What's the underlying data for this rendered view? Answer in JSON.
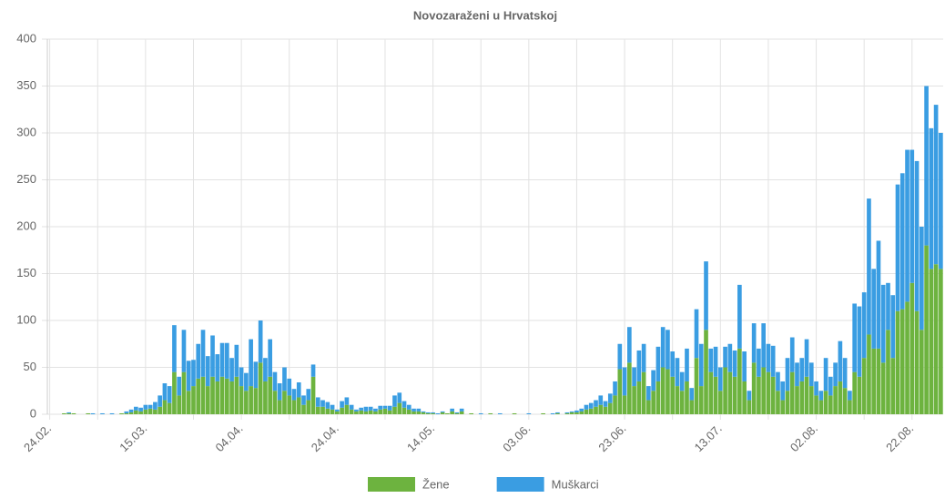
{
  "chart_data": {
    "type": "stacked_bar",
    "title": "Novozaraženi u Hrvatskoj",
    "categories": [
      "24.02.",
      null,
      null,
      null,
      null,
      null,
      null,
      null,
      null,
      null,
      null,
      null,
      null,
      null,
      null,
      null,
      null,
      null,
      null,
      null,
      "15.03.",
      null,
      null,
      null,
      null,
      null,
      null,
      null,
      null,
      null,
      null,
      null,
      null,
      null,
      null,
      null,
      null,
      null,
      null,
      null,
      "04.04.",
      null,
      null,
      null,
      null,
      null,
      null,
      null,
      null,
      null,
      null,
      null,
      null,
      null,
      null,
      null,
      null,
      null,
      null,
      null,
      "24.04.",
      null,
      null,
      null,
      null,
      null,
      null,
      null,
      null,
      null,
      null,
      null,
      null,
      null,
      null,
      null,
      null,
      null,
      null,
      null,
      "14.05.",
      null,
      null,
      null,
      null,
      null,
      null,
      null,
      null,
      null,
      null,
      null,
      null,
      null,
      null,
      null,
      null,
      null,
      null,
      null,
      "03.06.",
      null,
      null,
      null,
      null,
      null,
      null,
      null,
      null,
      null,
      null,
      null,
      null,
      null,
      null,
      null,
      null,
      null,
      null,
      null,
      "23.06.",
      null,
      null,
      null,
      null,
      null,
      null,
      null,
      null,
      null,
      null,
      null,
      null,
      null,
      null,
      null,
      null,
      null,
      null,
      null,
      "13.07.",
      null,
      null,
      null,
      null,
      null,
      null,
      null,
      null,
      null,
      null,
      null,
      null,
      null,
      null,
      null,
      null,
      null,
      null,
      null,
      "02.08.",
      null,
      null,
      null,
      null,
      null,
      null,
      null,
      null,
      null,
      null,
      null,
      null,
      null,
      null,
      null,
      null,
      null,
      null,
      null,
      "22.08.",
      null,
      null,
      null,
      null,
      null,
      null
    ],
    "series": [
      {
        "name": "Žene",
        "color": "#6db33f",
        "values": [
          0,
          0,
          0,
          1,
          1,
          1,
          0,
          0,
          1,
          0,
          0,
          0,
          0,
          0,
          0,
          1,
          1,
          2,
          4,
          3,
          5,
          6,
          5,
          8,
          15,
          12,
          45,
          20,
          45,
          25,
          30,
          38,
          40,
          30,
          40,
          35,
          40,
          38,
          35,
          40,
          30,
          25,
          30,
          28,
          55,
          35,
          40,
          25,
          15,
          25,
          20,
          15,
          18,
          10,
          15,
          40,
          8,
          8,
          6,
          5,
          3,
          7,
          10,
          5,
          3,
          4,
          3,
          4,
          3,
          5,
          6,
          4,
          8,
          12,
          7,
          5,
          3,
          3,
          2,
          1,
          1,
          0,
          2,
          1,
          3,
          1,
          3,
          0,
          1,
          0,
          0,
          0,
          1,
          0,
          0,
          0,
          0,
          1,
          0,
          0,
          0,
          0,
          0,
          1,
          0,
          0,
          1,
          0,
          1,
          2,
          2,
          3,
          5,
          6,
          8,
          10,
          8,
          12,
          20,
          48,
          20,
          55,
          30,
          35,
          45,
          15,
          25,
          35,
          50,
          48,
          40,
          30,
          25,
          35,
          15,
          60,
          30,
          90,
          45,
          40,
          25,
          50,
          45,
          40,
          70,
          35,
          15,
          55,
          40,
          50,
          45,
          40,
          25,
          15,
          25,
          45,
          30,
          35,
          40,
          30,
          20,
          15,
          25,
          20,
          30,
          35,
          28,
          15,
          45,
          40,
          60,
          85,
          70,
          70,
          55,
          90,
          60,
          110,
          112,
          120,
          140,
          110,
          90,
          180,
          155,
          160,
          155
        ]
      },
      {
        "name": "Muškarci",
        "color": "#3a9de2",
        "values": [
          0,
          0,
          0,
          0,
          1,
          0,
          0,
          0,
          0,
          1,
          0,
          1,
          0,
          1,
          0,
          0,
          2,
          3,
          4,
          4,
          5,
          4,
          8,
          12,
          18,
          18,
          50,
          20,
          45,
          32,
          28,
          37,
          50,
          32,
          44,
          29,
          36,
          38,
          25,
          34,
          20,
          19,
          50,
          28,
          45,
          25,
          40,
          20,
          18,
          25,
          18,
          12,
          16,
          10,
          12,
          13,
          10,
          7,
          7,
          5,
          2,
          7,
          8,
          5,
          2,
          3,
          5,
          4,
          3,
          4,
          3,
          5,
          12,
          11,
          7,
          5,
          3,
          3,
          1,
          1,
          1,
          1,
          1,
          0,
          3,
          1,
          3,
          0,
          0,
          0,
          1,
          0,
          0,
          0,
          1,
          0,
          0,
          0,
          0,
          0,
          1,
          0,
          0,
          0,
          0,
          1,
          1,
          0,
          1,
          1,
          2,
          3,
          5,
          6,
          7,
          10,
          6,
          10,
          15,
          27,
          30,
          38,
          20,
          33,
          30,
          15,
          22,
          37,
          43,
          42,
          27,
          30,
          20,
          35,
          13,
          52,
          45,
          73,
          25,
          32,
          25,
          22,
          30,
          28,
          68,
          32,
          10,
          42,
          30,
          47,
          30,
          33,
          20,
          20,
          35,
          37,
          25,
          25,
          40,
          25,
          15,
          10,
          35,
          20,
          25,
          43,
          32,
          10,
          73,
          75,
          70,
          145,
          85,
          115,
          83,
          50,
          67,
          135,
          145,
          162,
          142,
          160,
          110,
          170,
          150,
          170,
          145
        ]
      }
    ],
    "ylim": [
      0,
      400
    ],
    "yticks": [
      0,
      50,
      100,
      150,
      200,
      250,
      300,
      350,
      400
    ],
    "grid": true,
    "legend": "bottom"
  }
}
